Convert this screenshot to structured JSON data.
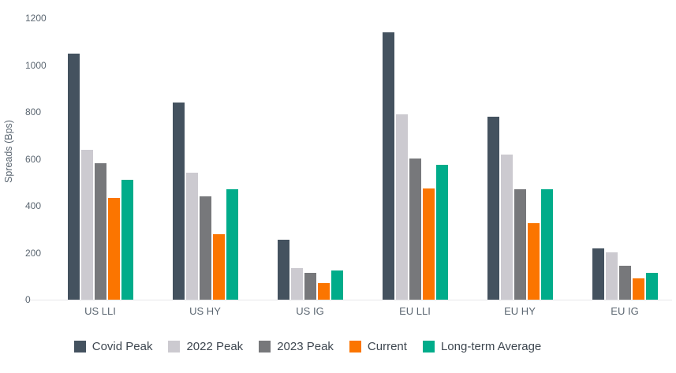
{
  "colors": {
    "background": "#ffffff",
    "axis_text": "#5b6671",
    "legend_text": "#3e4750",
    "baseline": "#e8e8ea"
  },
  "chart_data": {
    "type": "bar",
    "title": "",
    "xlabel": "",
    "ylabel": "Spreads (Bps)",
    "ylim": [
      0,
      1200
    ],
    "yticks": [
      0,
      200,
      400,
      600,
      800,
      1000,
      1200
    ],
    "grid": false,
    "legend_position": "bottom",
    "categories": [
      "US LLI",
      "US HY",
      "US IG",
      "EU LLI",
      "EU HY",
      "EU IG"
    ],
    "series": [
      {
        "name": "Covid Peak",
        "color": "#44525f",
        "values": [
          1050,
          840,
          255,
          1140,
          780,
          220
        ]
      },
      {
        "name": "2022 Peak",
        "color": "#cccad0",
        "values": [
          640,
          540,
          135,
          790,
          620,
          200
        ]
      },
      {
        "name": "2023 Peak",
        "color": "#77787b",
        "values": [
          580,
          440,
          115,
          600,
          470,
          145
        ]
      },
      {
        "name": "Current",
        "color": "#fb7500",
        "values": [
          435,
          280,
          70,
          475,
          325,
          90
        ]
      },
      {
        "name": "Long-term Average",
        "color": "#00ac8a",
        "values": [
          510,
          470,
          125,
          575,
          470,
          115
        ]
      }
    ]
  }
}
